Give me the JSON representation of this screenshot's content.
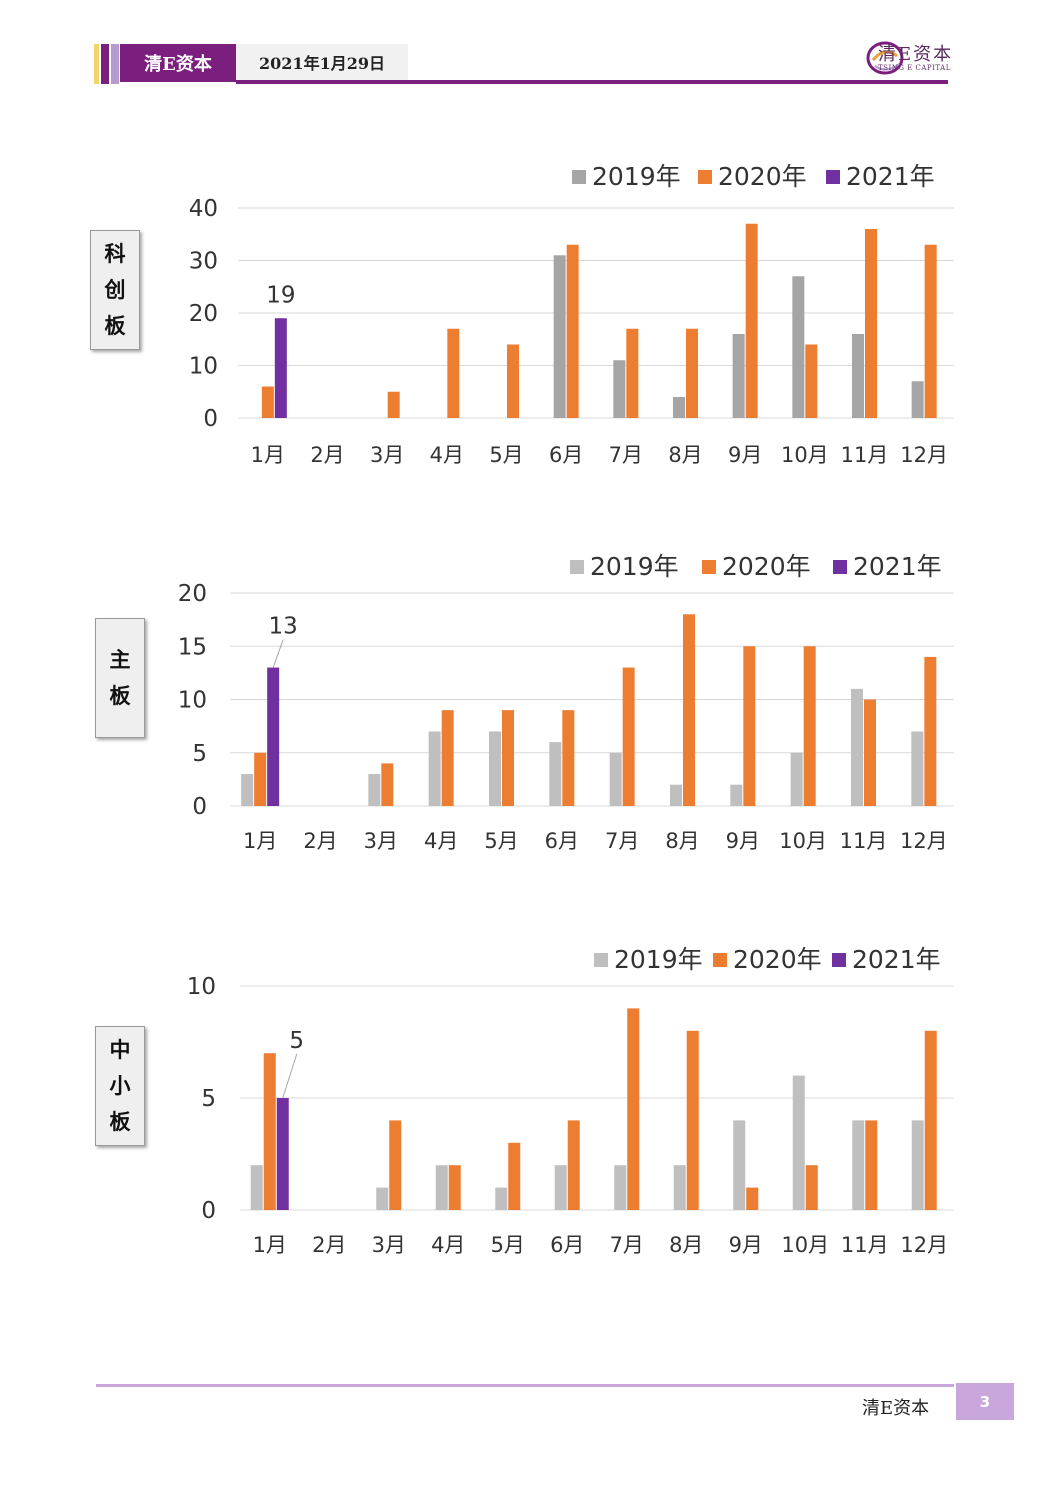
{
  "header": {
    "brand": "清E资本",
    "date": "2021年1月29日",
    "logo_cn": "清E资本",
    "logo_en": "TSING E CAPITAL"
  },
  "colors": {
    "accent": "#7b1f7f",
    "series_2019_a": "#a5a5a5",
    "series_2019_b": "#bfbfbf",
    "series_2020": "#ed7d31",
    "series_2021": "#7030a0",
    "footer": "#c9a6dc"
  },
  "side_labels": [
    [
      "科",
      "创",
      "板"
    ],
    [
      "主",
      "板"
    ],
    [
      "中",
      "小",
      "板"
    ]
  ],
  "chart_data": [
    {
      "type": "bar",
      "categories": [
        "1月",
        "2月",
        "3月",
        "4月",
        "5月",
        "6月",
        "7月",
        "8月",
        "9月",
        "10月",
        "11月",
        "12月"
      ],
      "series": [
        {
          "name": "2019年",
          "values": [
            0,
            0,
            0,
            0,
            0,
            31,
            11,
            4,
            16,
            27,
            16,
            7
          ]
        },
        {
          "name": "2020年",
          "values": [
            6,
            0,
            5,
            17,
            14,
            33,
            17,
            17,
            37,
            14,
            36,
            33
          ]
        },
        {
          "name": "2021年",
          "values": [
            19,
            null,
            null,
            null,
            null,
            null,
            null,
            null,
            null,
            null,
            null,
            null
          ]
        }
      ],
      "ylim": [
        0,
        40
      ],
      "yticks": [
        "0",
        "10",
        "20",
        "30",
        "40"
      ],
      "data_labels": [
        {
          "series": "2021年",
          "category": "1月",
          "text": "19"
        }
      ],
      "legend": "top-right",
      "grid": true
    },
    {
      "type": "bar",
      "categories": [
        "1月",
        "2月",
        "3月",
        "4月",
        "5月",
        "6月",
        "7月",
        "8月",
        "9月",
        "10月",
        "11月",
        "12月"
      ],
      "series": [
        {
          "name": "2019年",
          "values": [
            3,
            0,
            3,
            7,
            7,
            6,
            5,
            2,
            2,
            5,
            11,
            7
          ]
        },
        {
          "name": "2020年",
          "values": [
            5,
            0,
            4,
            9,
            9,
            9,
            13,
            18,
            15,
            15,
            10,
            14
          ]
        },
        {
          "name": "2021年",
          "values": [
            13,
            null,
            null,
            null,
            null,
            null,
            null,
            null,
            null,
            null,
            null,
            null
          ]
        }
      ],
      "ylim": [
        0,
        20
      ],
      "yticks": [
        "0",
        "5",
        "10",
        "15",
        "20"
      ],
      "data_labels": [
        {
          "series": "2021年",
          "category": "1月",
          "text": "13"
        }
      ],
      "legend": "top-right",
      "grid": true
    },
    {
      "type": "bar",
      "categories": [
        "1月",
        "2月",
        "3月",
        "4月",
        "5月",
        "6月",
        "7月",
        "8月",
        "9月",
        "10月",
        "11月",
        "12月"
      ],
      "series": [
        {
          "name": "2019年",
          "values": [
            2,
            0,
            1,
            2,
            1,
            2,
            2,
            2,
            4,
            6,
            4,
            4
          ]
        },
        {
          "name": "2020年",
          "values": [
            7,
            0,
            4,
            2,
            3,
            4,
            9,
            8,
            1,
            2,
            4,
            8
          ]
        },
        {
          "name": "2021年",
          "values": [
            5,
            null,
            null,
            null,
            null,
            null,
            null,
            null,
            null,
            null,
            null,
            null
          ]
        }
      ],
      "ylim": [
        0,
        10
      ],
      "yticks": [
        "0",
        "5",
        "10"
      ],
      "data_labels": [
        {
          "series": "2021年",
          "category": "1月",
          "text": "5"
        }
      ],
      "legend": "top-right",
      "grid": true
    }
  ],
  "footer": {
    "brand": "清E资本",
    "page": "3"
  }
}
